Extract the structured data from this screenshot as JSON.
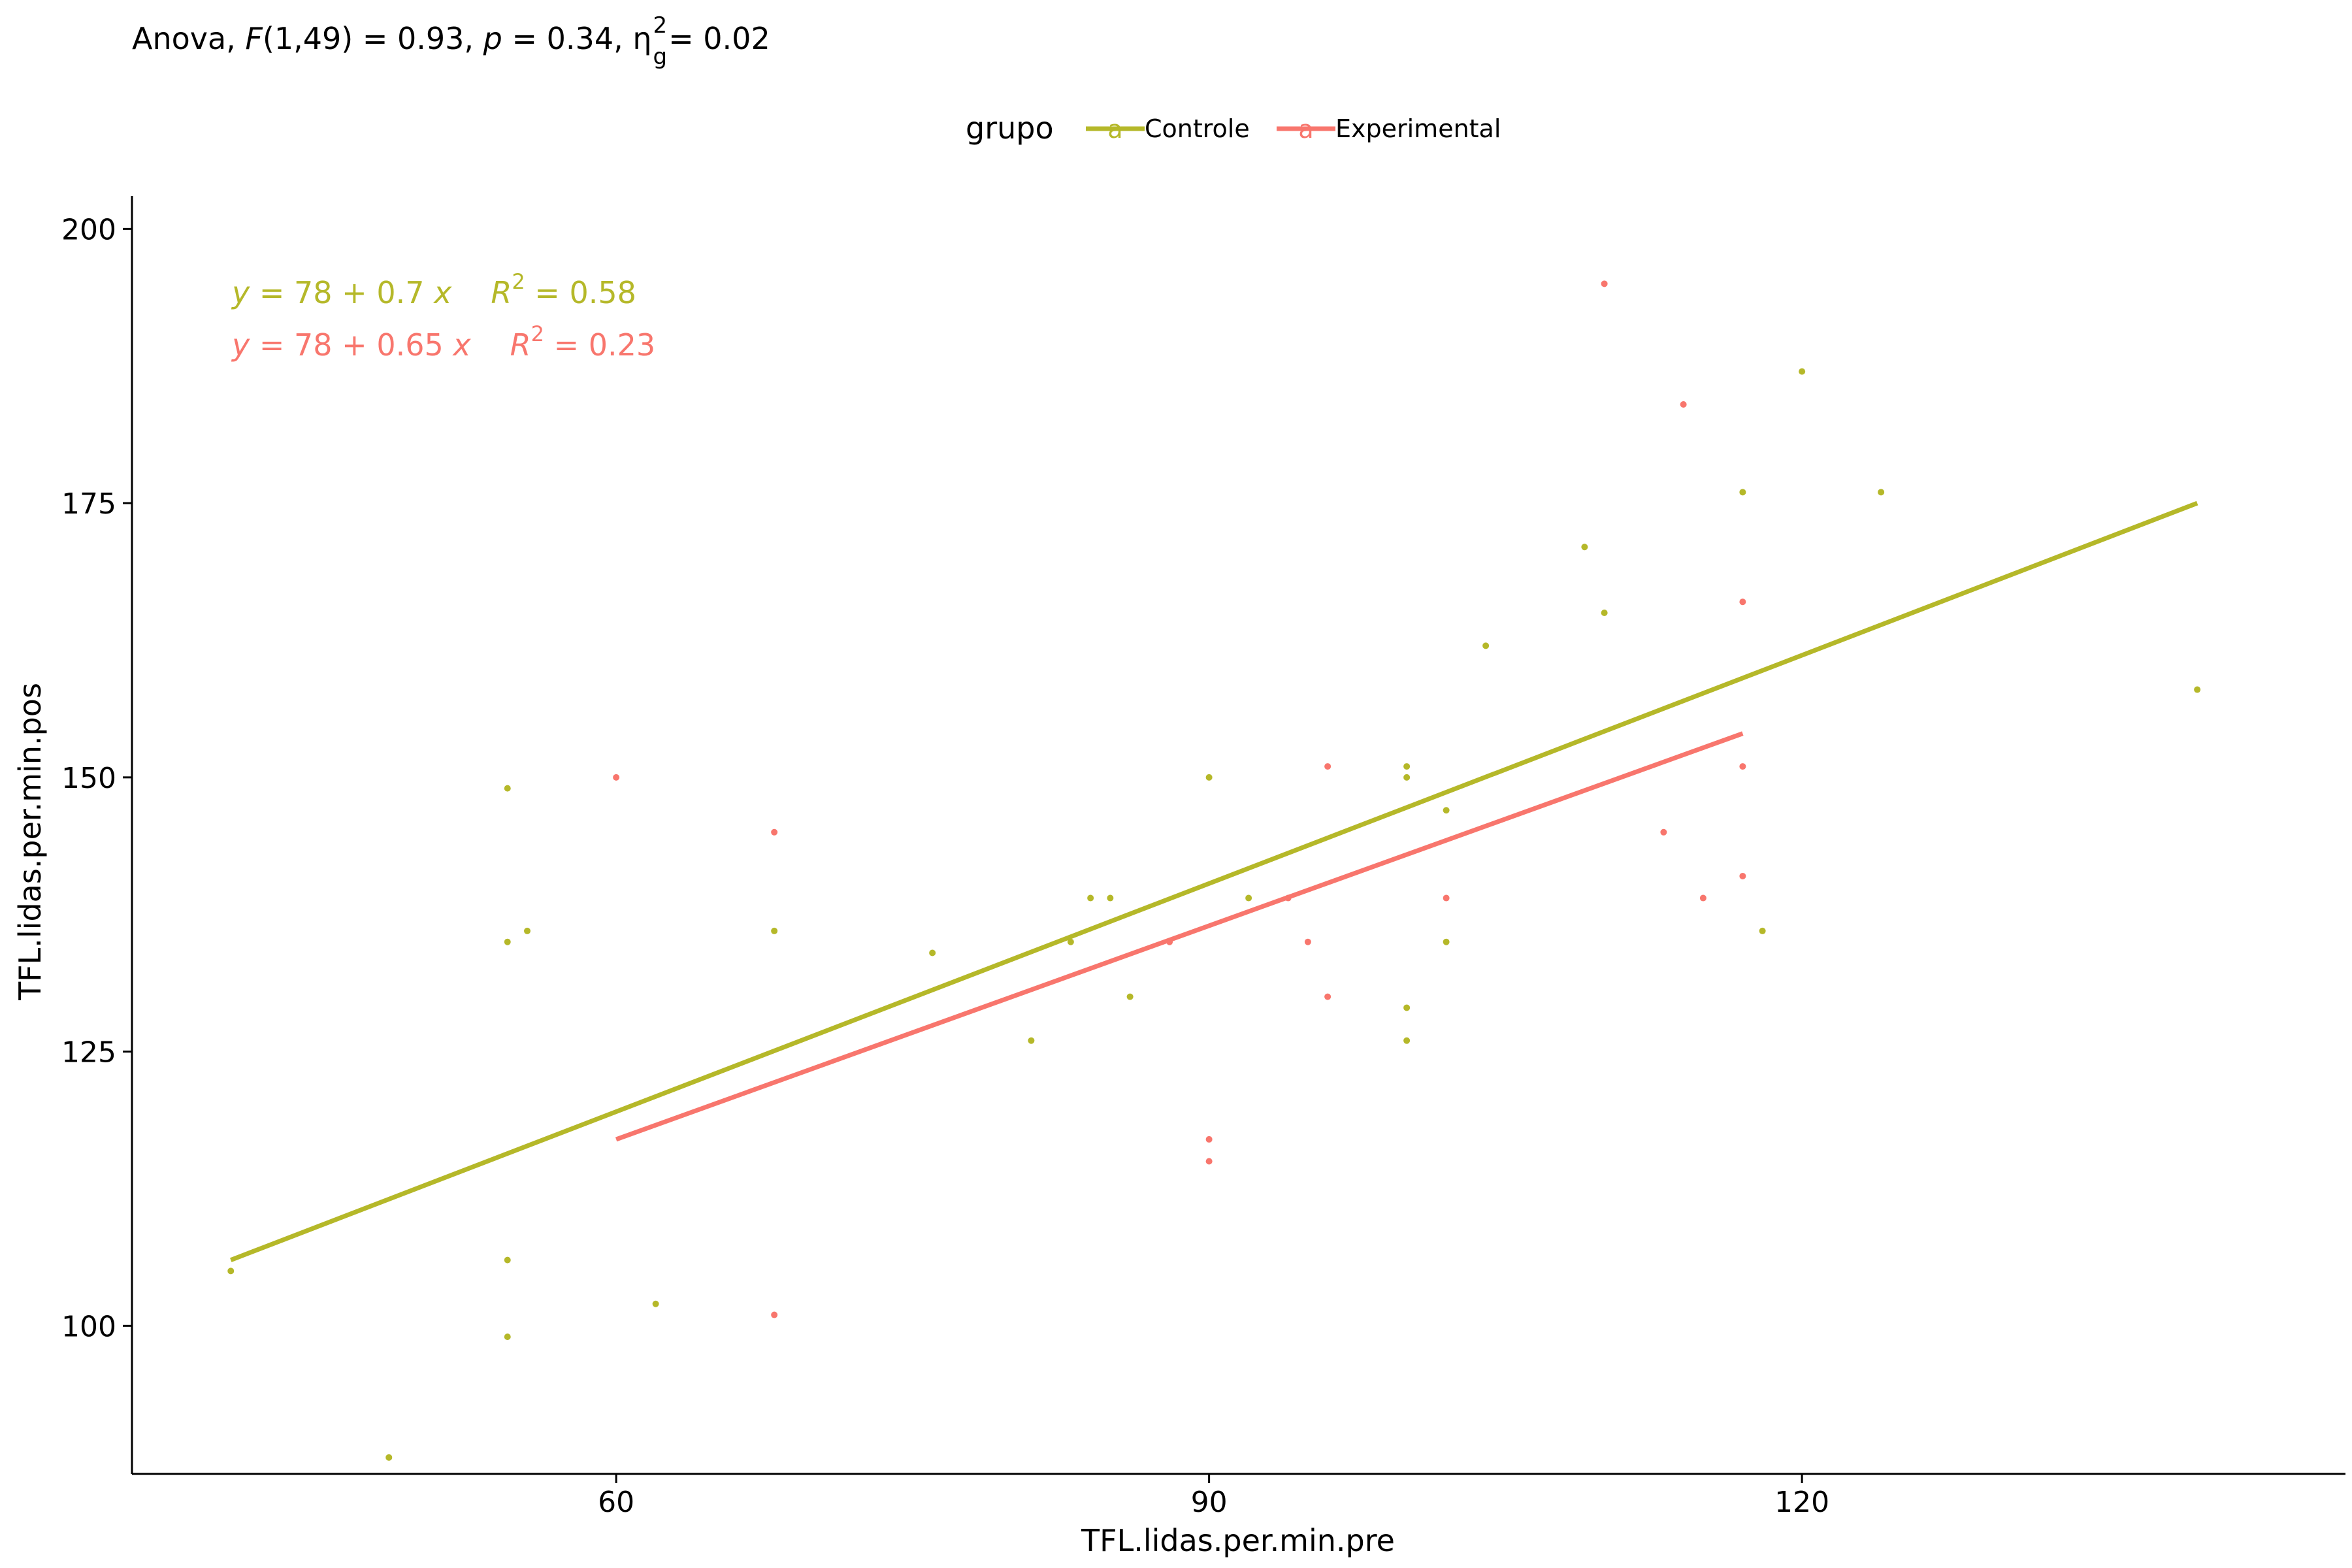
{
  "chart_data": {
    "type": "scatter",
    "title": "",
    "xlabel": "TFL.lidas.per.min.pre",
    "ylabel": "TFL.lidas.per.min.pos",
    "xlim": [
      35.5,
      147.5
    ],
    "ylim": [
      86.5,
      203
    ],
    "x_ticks": [
      60,
      90,
      120
    ],
    "y_ticks": [
      100,
      125,
      150,
      175,
      200
    ],
    "grid": false,
    "legend_position": "top",
    "legend_title": "grupo",
    "legend_key_glyph": "a",
    "annotation": {
      "prefix": "Anova, ",
      "f_sym": "F",
      "f_args": "(1,49) = 0.93, ",
      "p_sym": "p",
      "p_val": " = 0.34, ",
      "eta_base": "η",
      "eta_sup": "2",
      "eta_sub": "g",
      "eta_val": " = 0.02"
    },
    "series": [
      {
        "name": "Controle",
        "color": "#B5B829",
        "equation": {
          "y": "y",
          "rhs": " = 78 + 0.7 ",
          "x": "x",
          "r": "R",
          "r_sup": "2",
          "r_val": " = 0.58"
        },
        "fit": {
          "x": [
            40.5,
            140
          ],
          "y": [
            106,
            175
          ]
        },
        "points": [
          {
            "x": 40.5,
            "y": 105
          },
          {
            "x": 48.5,
            "y": 88
          },
          {
            "x": 54.5,
            "y": 149
          },
          {
            "x": 54.5,
            "y": 135
          },
          {
            "x": 55.5,
            "y": 136
          },
          {
            "x": 54.5,
            "y": 106
          },
          {
            "x": 54.5,
            "y": 99
          },
          {
            "x": 62,
            "y": 102
          },
          {
            "x": 68,
            "y": 136
          },
          {
            "x": 76,
            "y": 134
          },
          {
            "x": 81,
            "y": 126
          },
          {
            "x": 83,
            "y": 135
          },
          {
            "x": 84,
            "y": 139
          },
          {
            "x": 85,
            "y": 139
          },
          {
            "x": 86,
            "y": 130
          },
          {
            "x": 90,
            "y": 150
          },
          {
            "x": 92,
            "y": 139
          },
          {
            "x": 100,
            "y": 151
          },
          {
            "x": 100,
            "y": 150
          },
          {
            "x": 100,
            "y": 129
          },
          {
            "x": 100,
            "y": 126
          },
          {
            "x": 102,
            "y": 147
          },
          {
            "x": 102,
            "y": 135
          },
          {
            "x": 104,
            "y": 162
          },
          {
            "x": 109,
            "y": 171
          },
          {
            "x": 110,
            "y": 165
          },
          {
            "x": 117,
            "y": 176
          },
          {
            "x": 118,
            "y": 136
          },
          {
            "x": 120,
            "y": 187
          },
          {
            "x": 124,
            "y": 176
          },
          {
            "x": 140,
            "y": 158
          }
        ]
      },
      {
        "name": "Experimental",
        "color": "#F8766D",
        "equation": {
          "y": "y",
          "rhs": " = 78 + 0.65 ",
          "x": "x",
          "r": "R",
          "r_sup": "2",
          "r_val": " = 0.23"
        },
        "fit": {
          "x": [
            60,
            117
          ],
          "y": [
            117,
            154
          ]
        },
        "points": [
          {
            "x": 60,
            "y": 150
          },
          {
            "x": 68,
            "y": 145
          },
          {
            "x": 68,
            "y": 101
          },
          {
            "x": 88,
            "y": 135
          },
          {
            "x": 90,
            "y": 117
          },
          {
            "x": 90,
            "y": 115
          },
          {
            "x": 94,
            "y": 139
          },
          {
            "x": 95,
            "y": 135
          },
          {
            "x": 96,
            "y": 151
          },
          {
            "x": 96,
            "y": 130
          },
          {
            "x": 102,
            "y": 139
          },
          {
            "x": 110,
            "y": 195
          },
          {
            "x": 113,
            "y": 145
          },
          {
            "x": 114,
            "y": 184
          },
          {
            "x": 115,
            "y": 139
          },
          {
            "x": 117,
            "y": 166
          },
          {
            "x": 117,
            "y": 151
          },
          {
            "x": 117,
            "y": 141
          }
        ]
      }
    ]
  }
}
